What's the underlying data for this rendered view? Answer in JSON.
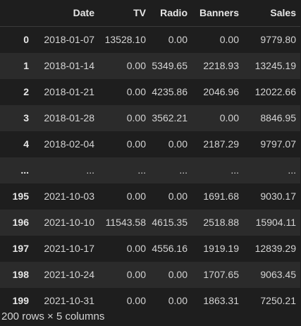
{
  "table": {
    "index_header": "",
    "columns": [
      "Date",
      "TV",
      "Radio",
      "Banners",
      "Sales"
    ],
    "rows": [
      {
        "index": "0",
        "cells": [
          "2018-01-07",
          "13528.10",
          "0.00",
          "0.00",
          "9779.80"
        ]
      },
      {
        "index": "1",
        "cells": [
          "2018-01-14",
          "0.00",
          "5349.65",
          "2218.93",
          "13245.19"
        ]
      },
      {
        "index": "2",
        "cells": [
          "2018-01-21",
          "0.00",
          "4235.86",
          "2046.96",
          "12022.66"
        ]
      },
      {
        "index": "3",
        "cells": [
          "2018-01-28",
          "0.00",
          "3562.21",
          "0.00",
          "8846.95"
        ]
      },
      {
        "index": "4",
        "cells": [
          "2018-02-04",
          "0.00",
          "0.00",
          "2187.29",
          "9797.07"
        ]
      },
      {
        "index": "...",
        "cells": [
          "...",
          "...",
          "...",
          "...",
          "..."
        ]
      },
      {
        "index": "195",
        "cells": [
          "2021-10-03",
          "0.00",
          "0.00",
          "1691.68",
          "9030.17"
        ]
      },
      {
        "index": "196",
        "cells": [
          "2021-10-10",
          "11543.58",
          "4615.35",
          "2518.88",
          "15904.11"
        ]
      },
      {
        "index": "197",
        "cells": [
          "2021-10-17",
          "0.00",
          "4556.16",
          "1919.19",
          "12839.29"
        ]
      },
      {
        "index": "198",
        "cells": [
          "2021-10-24",
          "0.00",
          "0.00",
          "1707.65",
          "9063.45"
        ]
      },
      {
        "index": "199",
        "cells": [
          "2021-10-31",
          "0.00",
          "0.00",
          "1863.31",
          "7250.21"
        ]
      }
    ]
  },
  "shape_text": "200 rows × 5 columns",
  "colors": {
    "background": "#1e1e1e",
    "stripe": "#2b2b2b",
    "text": "#d4d4d4"
  }
}
